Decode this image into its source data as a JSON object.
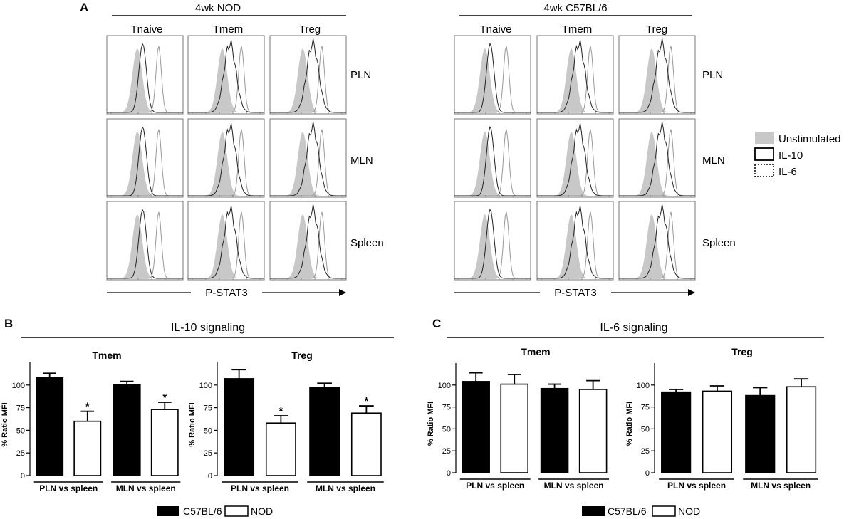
{
  "panel_labels": {
    "a": "A",
    "b": "B",
    "c": "C"
  },
  "panel_a": {
    "groups": [
      "4wk NOD",
      "4wk C57BL/6"
    ],
    "columns": [
      "Tnaive",
      "Tmem",
      "Treg"
    ],
    "rows": [
      "PLN",
      "MLN",
      "Spleen"
    ],
    "x_axis": "P-STAT3",
    "legend": [
      "Unstimulated",
      "IL-10",
      "IL-6"
    ]
  },
  "panel_b": {
    "title": "IL-10 signaling"
  },
  "panel_c": {
    "title": "IL-6 signaling"
  },
  "bottom_legend": {
    "black": "C57BL/6",
    "white": "NOD"
  },
  "colors": {
    "black": "#000000",
    "white": "#ffffff",
    "fill_grey": "#c8c8c8",
    "line_grey": "#999999"
  },
  "chart_data": [
    {
      "type": "bar",
      "panel": "B",
      "title": "Tmem",
      "ylabel": "% Ratio MFI",
      "ylim": [
        0,
        125
      ],
      "yticks": [
        0,
        25,
        50,
        75,
        100
      ],
      "categories": [
        "PLN vs spleen",
        "MLN vs spleen"
      ],
      "series": [
        {
          "name": "C57BL/6",
          "values": [
            108,
            100
          ],
          "errors": [
            5,
            4
          ]
        },
        {
          "name": "NOD",
          "values": [
            60,
            73
          ],
          "errors": [
            11,
            8
          ]
        }
      ],
      "significance": [
        [
          false,
          "*"
        ],
        [
          false,
          "*"
        ]
      ]
    },
    {
      "type": "bar",
      "panel": "B",
      "title": "Treg",
      "ylabel": "% Ratio MFI",
      "ylim": [
        0,
        125
      ],
      "yticks": [
        0,
        25,
        50,
        75,
        100
      ],
      "categories": [
        "PLN vs spleen",
        "MLN vs spleen"
      ],
      "series": [
        {
          "name": "C57BL/6",
          "values": [
            107,
            97
          ],
          "errors": [
            10,
            5
          ]
        },
        {
          "name": "NOD",
          "values": [
            58,
            69
          ],
          "errors": [
            8,
            8
          ]
        }
      ],
      "significance": [
        [
          false,
          "*"
        ],
        [
          false,
          "*"
        ]
      ]
    },
    {
      "type": "bar",
      "panel": "C",
      "title": "Tmem",
      "ylabel": "% Ratio MFI",
      "ylim": [
        0,
        125
      ],
      "yticks": [
        0,
        25,
        50,
        75,
        100
      ],
      "categories": [
        "PLN vs spleen",
        "MLN vs spleen"
      ],
      "series": [
        {
          "name": "C57BL/6",
          "values": [
            104,
            96
          ],
          "errors": [
            10,
            5
          ]
        },
        {
          "name": "NOD",
          "values": [
            101,
            95
          ],
          "errors": [
            11,
            10
          ]
        }
      ]
    },
    {
      "type": "bar",
      "panel": "C",
      "title": "Treg",
      "ylabel": "% Ratio MFI",
      "ylim": [
        0,
        125
      ],
      "yticks": [
        0,
        25,
        50,
        75,
        100
      ],
      "categories": [
        "PLN vs spleen",
        "MLN vs spleen"
      ],
      "series": [
        {
          "name": "C57BL/6",
          "values": [
            92,
            88
          ],
          "errors": [
            3,
            9
          ]
        },
        {
          "name": "NOD",
          "values": [
            93,
            98
          ],
          "errors": [
            6,
            9
          ]
        }
      ]
    }
  ]
}
